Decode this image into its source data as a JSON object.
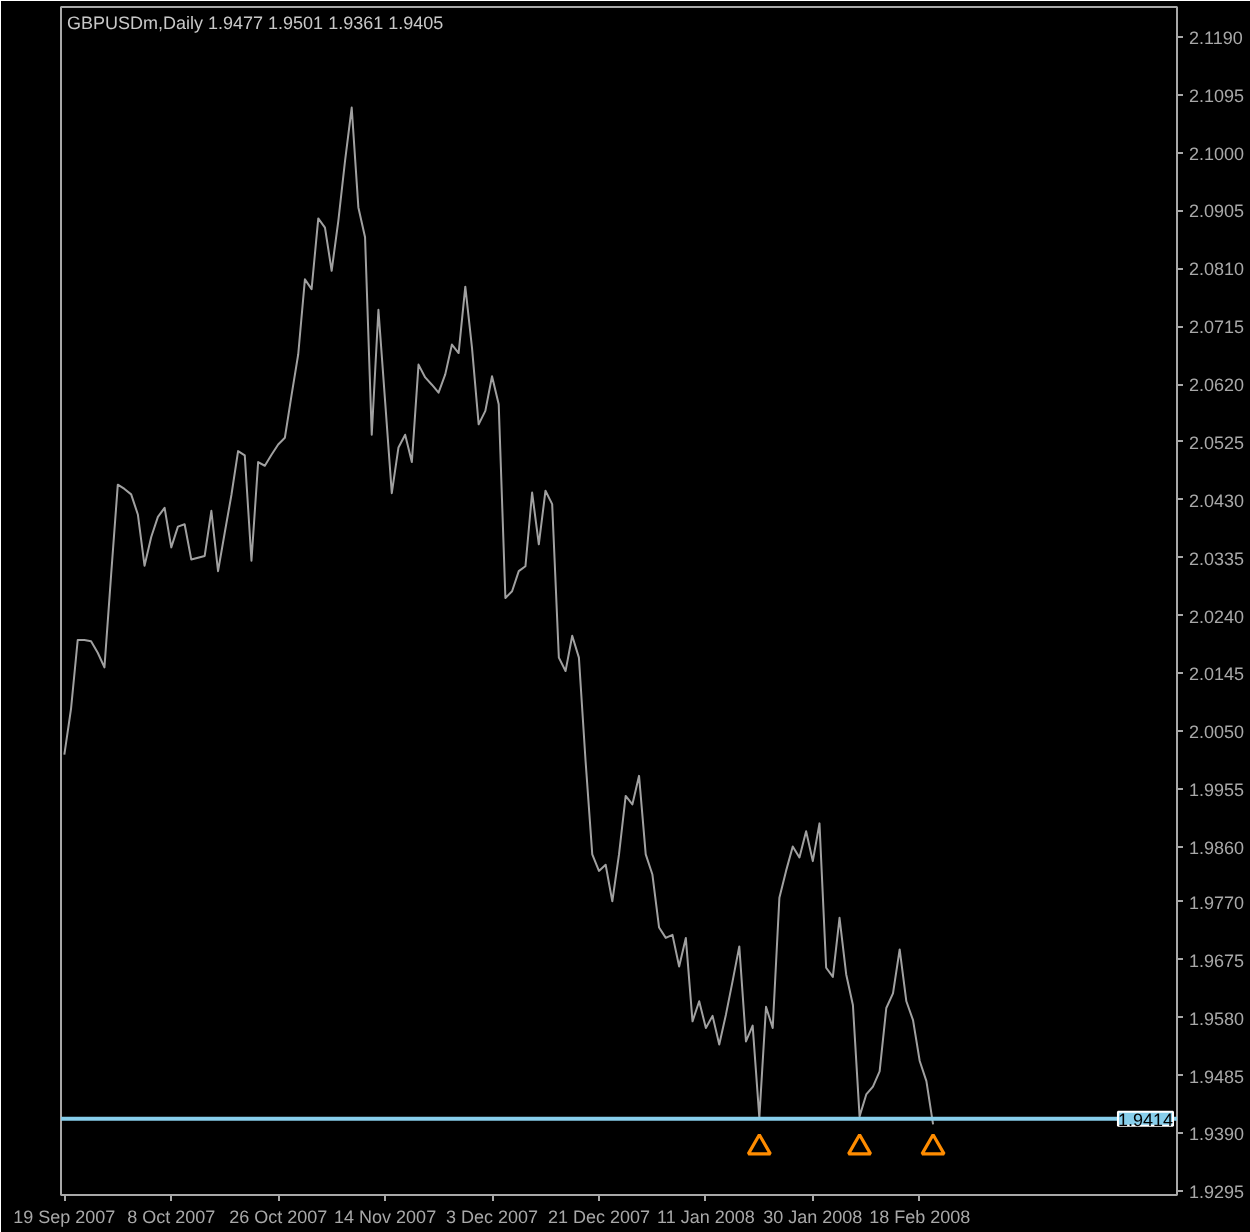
{
  "chart_data": {
    "type": "line",
    "title": "GBPUSDm,Daily 1.9477 1.9501 1.9361 1.9405",
    "categories": [
      "19 Sep 2007",
      null,
      null,
      null,
      null,
      null,
      null,
      null,
      null,
      null,
      null,
      null,
      null,
      null,
      null,
      null,
      "8 Oct 2007",
      null,
      null,
      null,
      null,
      null,
      null,
      null,
      null,
      null,
      null,
      null,
      null,
      null,
      null,
      null,
      "26 Oct 2007",
      null,
      null,
      null,
      null,
      null,
      null,
      null,
      null,
      null,
      null,
      null,
      null,
      null,
      null,
      null,
      "14 Nov 2007",
      null,
      null,
      null,
      null,
      null,
      null,
      null,
      null,
      null,
      null,
      null,
      null,
      null,
      null,
      null,
      "3 Dec 2007",
      null,
      null,
      null,
      null,
      null,
      null,
      null,
      null,
      null,
      null,
      null,
      null,
      null,
      null,
      null,
      "21 Dec 2007",
      null,
      null,
      null,
      null,
      null,
      null,
      null,
      null,
      null,
      null,
      null,
      null,
      null,
      null,
      null,
      "11 Jan 2008",
      null,
      null,
      null,
      null,
      null,
      null,
      null,
      null,
      null,
      null,
      null,
      null,
      null,
      null,
      null,
      "30 Jan 2008",
      null,
      null,
      null,
      null,
      null,
      null,
      null,
      null,
      null,
      null,
      null,
      null,
      null,
      null,
      null,
      "18 Feb 2008",
      null,
      null,
      null,
      null,
      null,
      null,
      null,
      null,
      null,
      null,
      null,
      null,
      null,
      null,
      null,
      null,
      null,
      null,
      null,
      null,
      null,
      null,
      null,
      null,
      null,
      null,
      null,
      null,
      null,
      null,
      null,
      null,
      null,
      null,
      null,
      null,
      null,
      null
    ],
    "series": [
      {
        "color": "#a0a0a0",
        "values": [
          2.0012,
          2.0087,
          2.02,
          2.02,
          2.0198,
          2.0179,
          2.0155,
          2.0307,
          2.0455,
          2.0448,
          2.0439,
          2.0406,
          2.0322,
          2.0369,
          2.0402,
          2.0417,
          2.0352,
          2.0386,
          2.039,
          2.0332,
          2.0335,
          2.0338,
          2.0412,
          2.0313,
          2.0376,
          2.0438,
          2.051,
          2.0503,
          2.033,
          2.0492,
          2.0486,
          2.0504,
          2.0521,
          2.0532,
          2.0602,
          2.0669,
          2.0792,
          2.0776,
          2.0892,
          2.0877,
          2.0806,
          2.0888,
          2.0986,
          2.1074,
          2.091,
          2.0861,
          2.0537,
          2.0742,
          2.0592,
          2.0441,
          2.0516,
          2.0537,
          2.0492,
          2.0652,
          2.0631,
          2.0619,
          2.0606,
          2.0636,
          2.0685,
          2.0671,
          2.078,
          2.068,
          2.0554,
          2.0576,
          2.0633,
          2.0587,
          2.0269,
          2.028,
          2.0313,
          2.0321,
          2.0442,
          2.0357,
          2.0445,
          2.0423,
          2.0171,
          2.0149,
          2.0207,
          2.0171,
          2.0001,
          1.9848,
          1.9821,
          1.9831,
          1.9771,
          1.9848,
          1.9944,
          1.993,
          1.9977,
          1.9848,
          1.9815,
          1.9728,
          1.9711,
          1.9716,
          1.9664,
          1.9711,
          1.9574,
          1.9607,
          1.9563,
          1.9583,
          1.9536,
          1.9585,
          1.964,
          1.9697,
          1.9541,
          1.9567,
          1.9416,
          1.9598,
          1.9563,
          1.9777,
          1.9821,
          1.9861,
          1.9843,
          1.9886,
          1.9837,
          1.9899,
          1.9662,
          1.9647,
          1.9744,
          1.9651,
          1.9601,
          1.9418,
          1.9454,
          1.9467,
          1.9492,
          1.9596,
          1.962,
          1.9692,
          1.9607,
          1.9576,
          1.9509,
          1.9476,
          1.9405,
          null,
          null,
          null,
          null,
          null,
          null,
          null,
          null,
          null,
          null,
          null,
          null,
          null,
          null,
          null,
          null,
          null,
          null,
          null,
          null,
          null,
          null,
          null,
          null,
          null,
          null,
          null,
          null,
          null,
          null,
          null,
          null,
          null,
          null,
          null,
          null
        ]
      },
      {
        "type": "scatter",
        "marker": "triangle",
        "color": "#ff8c00",
        "values": [
          null,
          null,
          null,
          null,
          null,
          null,
          null,
          null,
          null,
          null,
          null,
          null,
          null,
          null,
          null,
          null,
          null,
          null,
          null,
          null,
          null,
          null,
          null,
          null,
          null,
          null,
          null,
          null,
          null,
          null,
          null,
          null,
          null,
          null,
          null,
          null,
          null,
          null,
          null,
          null,
          null,
          null,
          null,
          null,
          null,
          null,
          null,
          null,
          null,
          null,
          null,
          null,
          null,
          null,
          null,
          null,
          null,
          null,
          null,
          null,
          null,
          null,
          null,
          null,
          null,
          null,
          null,
          null,
          null,
          null,
          null,
          null,
          null,
          null,
          null,
          null,
          null,
          null,
          null,
          null,
          null,
          null,
          null,
          null,
          null,
          null,
          null,
          null,
          null,
          null,
          null,
          null,
          null,
          null,
          null,
          null,
          null,
          null,
          null,
          null,
          null,
          null,
          null,
          null,
          1.9367,
          null,
          null,
          null,
          null,
          null,
          null,
          null,
          null,
          null,
          null,
          null,
          null,
          null,
          null,
          1.9367,
          null,
          null,
          null,
          null,
          null,
          null,
          null,
          null,
          null,
          null,
          1.9367,
          null,
          null,
          null,
          null,
          null,
          null,
          null,
          null,
          null,
          null,
          null,
          null,
          null,
          null,
          null,
          null,
          null,
          null,
          null,
          null,
          null,
          null,
          null,
          null,
          null,
          null,
          null,
          null,
          null,
          null,
          null,
          null,
          null,
          null,
          null,
          null
        ]
      }
    ],
    "ylim": [
      1.9289,
      2.1239
    ],
    "yticks": [
      {
        "value": 2.119,
        "label": "2.1190"
      },
      2.1095,
      {
        "value": 2.1,
        "label": "2.1000"
      },
      2.0905,
      {
        "value": 2.081,
        "label": "2.0810"
      },
      2.0715,
      {
        "value": 2.062,
        "label": "2.0620"
      },
      2.0525,
      {
        "value": 2.043,
        "label": "2.0430"
      },
      2.0335,
      {
        "value": 2.024,
        "label": "2.0240"
      },
      2.0145,
      {
        "value": 2.005,
        "label": "2.0050"
      },
      1.9955,
      {
        "value": 1.986,
        "label": "1.9860"
      },
      {
        "value": 1.977,
        "label": "1.9770"
      },
      1.9675,
      {
        "value": 1.958,
        "label": "1.9580"
      },
      1.9485,
      {
        "value": 1.939,
        "label": "1.9390"
      },
      1.9295
    ],
    "ref_lines": [
      {
        "axis": "y",
        "value": 1.9414,
        "label": "1.9414",
        "color": "#87ceeb"
      }
    ]
  }
}
